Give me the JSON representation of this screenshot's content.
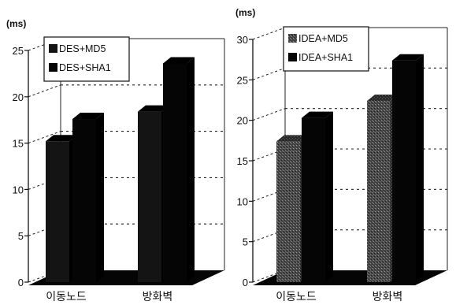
{
  "chart_data": [
    {
      "type": "bar",
      "y_unit": "(ms)",
      "ylim": [
        0,
        25
      ],
      "y_ticks": [
        "0",
        "5",
        "10",
        "15",
        "20",
        "25"
      ],
      "categories": [
        "이동노드",
        "방화벽"
      ],
      "series": [
        {
          "name": "DES+MD5",
          "values": [
            15.2,
            18.4
          ],
          "color": "#141414",
          "pattern": "solid"
        },
        {
          "name": "DES+SHA1",
          "values": [
            17.6,
            23.6
          ],
          "color": "#050505",
          "pattern": "solid"
        }
      ],
      "grid": true,
      "legend_position": "top-left"
    },
    {
      "type": "bar",
      "y_unit": "(ms)",
      "ylim": [
        0,
        30
      ],
      "y_ticks": [
        "0",
        "5",
        "10",
        "15",
        "20",
        "25",
        "30"
      ],
      "categories": [
        "이동노드",
        "방화벽"
      ],
      "series": [
        {
          "name": "IDEA+MD5",
          "values": [
            17.4,
            22.4
          ],
          "color": "#3a3a3a",
          "pattern": "stippled"
        },
        {
          "name": "IDEA+SHA1",
          "values": [
            20.3,
            27.4
          ],
          "color": "#050505",
          "pattern": "solid"
        }
      ],
      "grid": true,
      "legend_position": "top-left"
    }
  ]
}
